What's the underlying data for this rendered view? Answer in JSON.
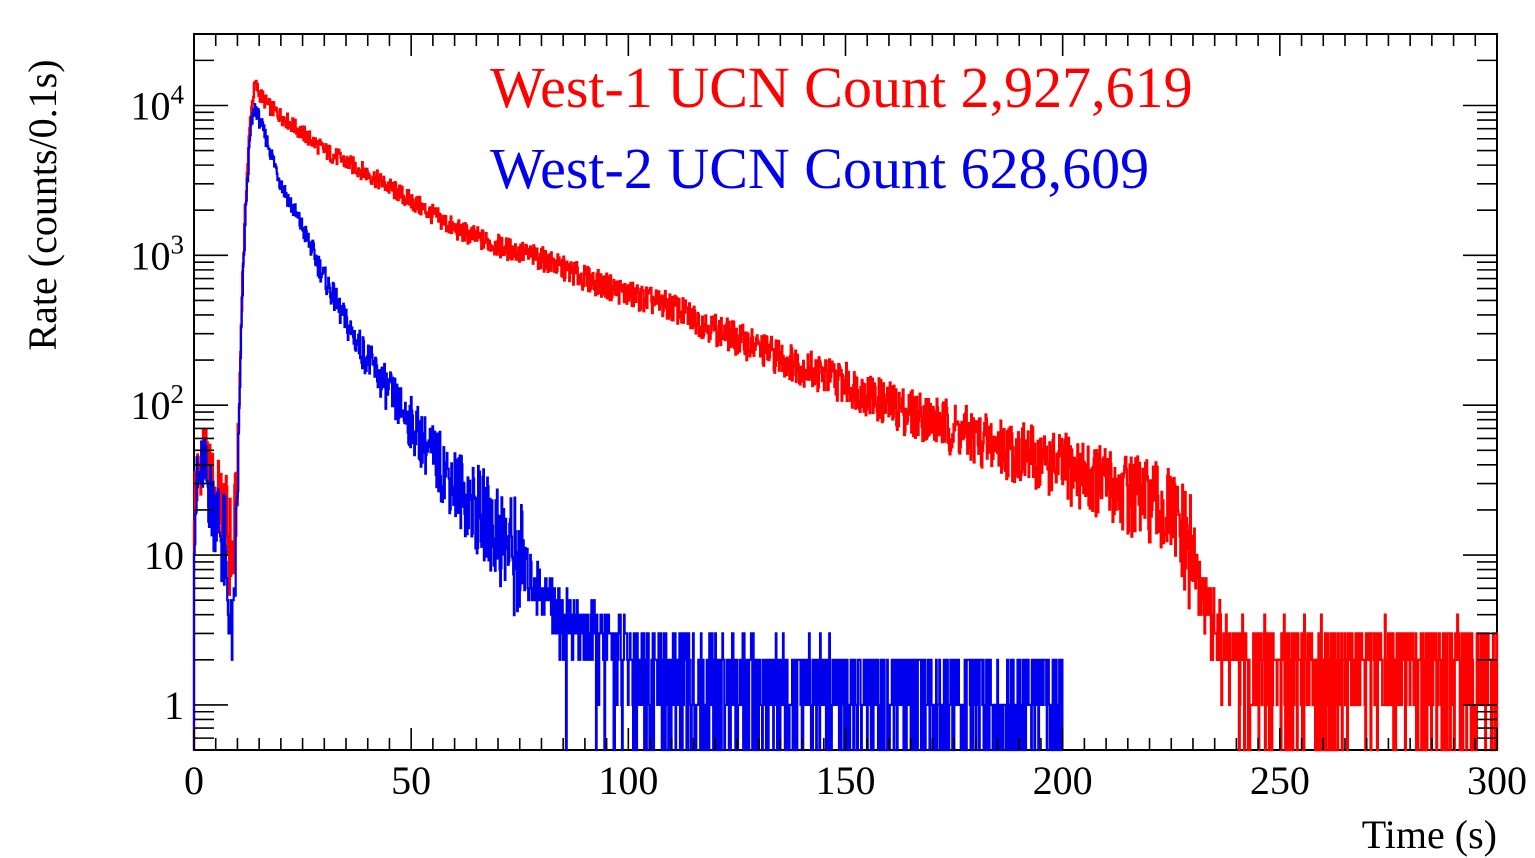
{
  "chart_data": {
    "type": "line",
    "title": "",
    "xlabel": "Time (s)",
    "ylabel": "Rate (counts/0.1s)",
    "xlim": [
      0,
      300
    ],
    "ylim": [
      0.5,
      30000
    ],
    "yscale": "log",
    "grid": false,
    "legend_placement": "top-center",
    "x_ticks": [
      0,
      50,
      100,
      150,
      200,
      250,
      300
    ],
    "x_tick_labels": [
      "0",
      "50",
      "100",
      "150",
      "200",
      "250",
      "300"
    ],
    "y_ticks": [
      1,
      10,
      100,
      1000,
      10000
    ],
    "y_tick_labels": [
      {
        "base": "1",
        "exp": ""
      },
      {
        "base": "10",
        "exp": ""
      },
      {
        "base": "10",
        "exp": "2"
      },
      {
        "base": "10",
        "exp": "3"
      },
      {
        "base": "10",
        "exp": "4"
      }
    ],
    "series": [
      {
        "name": "West-1 UCN Count 2,927,619",
        "color": "#ff0000",
        "end_time": 300,
        "points": [
          [
            0,
            25
          ],
          [
            1,
            35
          ],
          [
            2,
            50
          ],
          [
            3,
            38
          ],
          [
            4,
            30
          ],
          [
            5,
            24
          ],
          [
            6,
            22
          ],
          [
            7,
            18
          ],
          [
            8,
            12
          ],
          [
            9,
            9
          ],
          [
            10,
            40
          ],
          [
            11,
            600
          ],
          [
            12,
            3000
          ],
          [
            13,
            9000
          ],
          [
            14,
            14000
          ],
          [
            15,
            12000
          ],
          [
            17,
            10000
          ],
          [
            20,
            8500
          ],
          [
            25,
            6500
          ],
          [
            30,
            5000
          ],
          [
            40,
            3500
          ],
          [
            50,
            2300
          ],
          [
            60,
            1500
          ],
          [
            70,
            1150
          ],
          [
            80,
            950
          ],
          [
            90,
            700
          ],
          [
            100,
            550
          ],
          [
            110,
            450
          ],
          [
            120,
            320
          ],
          [
            130,
            240
          ],
          [
            140,
            180
          ],
          [
            150,
            140
          ],
          [
            160,
            100
          ],
          [
            170,
            80
          ],
          [
            180,
            60
          ],
          [
            190,
            48
          ],
          [
            200,
            38
          ],
          [
            210,
            30
          ],
          [
            220,
            22
          ],
          [
            225,
            18
          ],
          [
            228,
            12
          ],
          [
            232,
            6
          ],
          [
            236,
            3
          ],
          [
            240,
            2
          ],
          [
            250,
            2
          ],
          [
            260,
            2
          ],
          [
            270,
            2
          ],
          [
            280,
            2
          ],
          [
            290,
            2
          ],
          [
            300,
            2
          ]
        ]
      },
      {
        "name": "West-2 UCN Count 628,609",
        "color": "#0000ee",
        "end_time": 200,
        "points": [
          [
            0,
            20
          ],
          [
            1,
            30
          ],
          [
            2,
            40
          ],
          [
            3,
            30
          ],
          [
            4,
            22
          ],
          [
            5,
            20
          ],
          [
            6,
            15
          ],
          [
            7,
            10
          ],
          [
            8,
            4
          ],
          [
            9,
            3
          ],
          [
            10,
            30
          ],
          [
            11,
            500
          ],
          [
            12,
            2500
          ],
          [
            13,
            7000
          ],
          [
            14,
            10000
          ],
          [
            15,
            8000
          ],
          [
            17,
            5500
          ],
          [
            20,
            3000
          ],
          [
            25,
            1500
          ],
          [
            30,
            700
          ],
          [
            35,
            350
          ],
          [
            40,
            200
          ],
          [
            45,
            120
          ],
          [
            50,
            75
          ],
          [
            55,
            45
          ],
          [
            60,
            30
          ],
          [
            65,
            20
          ],
          [
            70,
            14
          ],
          [
            75,
            9
          ],
          [
            80,
            6
          ],
          [
            85,
            4
          ],
          [
            90,
            3
          ],
          [
            95,
            2.5
          ],
          [
            100,
            2
          ],
          [
            110,
            1.6
          ],
          [
            120,
            1.5
          ],
          [
            130,
            1.4
          ],
          [
            140,
            1.3
          ],
          [
            150,
            1.3
          ],
          [
            160,
            1.2
          ],
          [
            170,
            1.2
          ],
          [
            180,
            1.2
          ],
          [
            190,
            1.1
          ],
          [
            200,
            1.1
          ]
        ]
      }
    ]
  }
}
